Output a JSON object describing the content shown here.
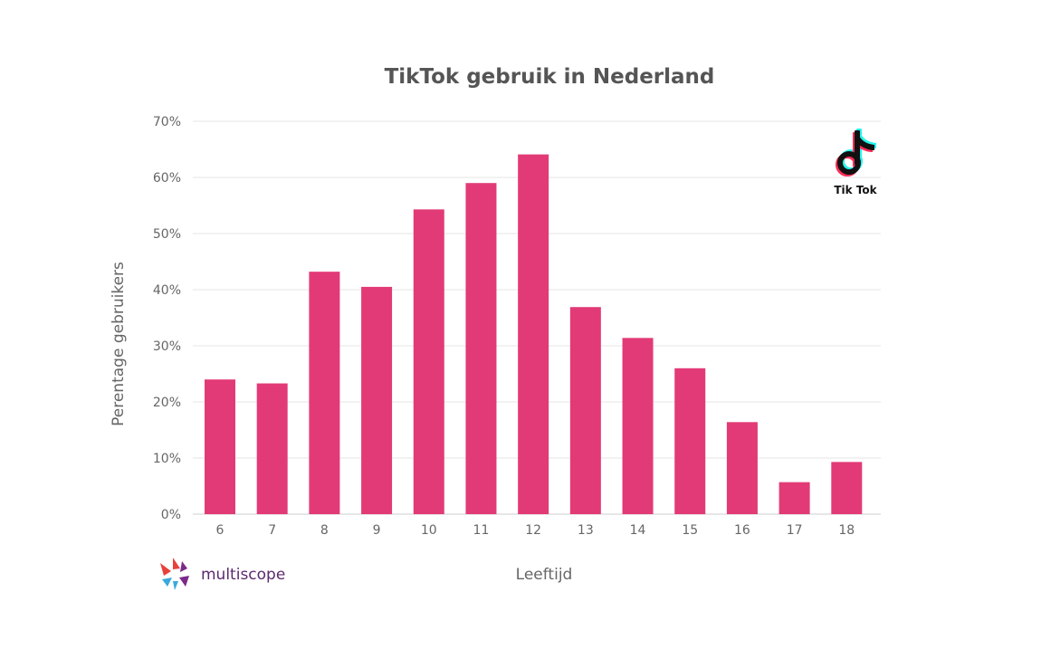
{
  "chart_data": {
    "type": "bar",
    "title": "TikTok gebruik in Nederland",
    "xlabel": "Leeftijd",
    "ylabel": "Perentage gebruikers",
    "categories": [
      "6",
      "7",
      "8",
      "9",
      "10",
      "11",
      "12",
      "13",
      "14",
      "15",
      "16",
      "17",
      "18"
    ],
    "values": [
      24,
      23.3,
      43.2,
      40.5,
      54.3,
      59,
      64.1,
      36.9,
      31.4,
      26,
      16.4,
      5.7,
      9.3
    ],
    "ylim": [
      0,
      70
    ],
    "yticks": [
      0,
      10,
      20,
      30,
      40,
      50,
      60,
      70
    ],
    "ytick_labels": [
      "0%",
      "10%",
      "20%",
      "30%",
      "40%",
      "50%",
      "60%",
      "70%"
    ],
    "grid": true,
    "legend": "none",
    "bar_color": "#e23a77"
  },
  "logos": {
    "tiktok_label": "Tik Tok",
    "tiktok_icon": "tiktok-note-icon",
    "brand_name": "multiscope",
    "brand_icon": "multiscope-logo-icon"
  }
}
